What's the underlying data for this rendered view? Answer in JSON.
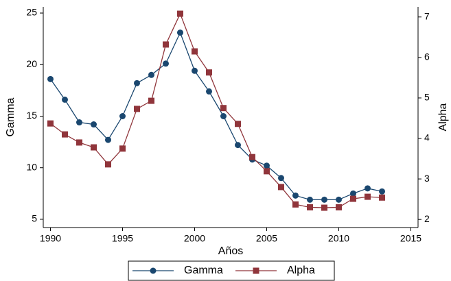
{
  "chart_data": {
    "type": "line",
    "x": [
      1990,
      1991,
      1992,
      1993,
      1994,
      1995,
      1996,
      1997,
      1998,
      1999,
      2000,
      2001,
      2002,
      2003,
      2004,
      2005,
      2006,
      2007,
      2008,
      2009,
      2010,
      2011,
      2012,
      2013
    ],
    "series": [
      {
        "name": "Gamma",
        "color": "#1a476f",
        "marker": "circle",
        "values": [
          18.6,
          16.6,
          14.4,
          14.2,
          12.7,
          15.0,
          18.2,
          19.0,
          20.1,
          23.1,
          19.4,
          17.4,
          15.0,
          12.2,
          10.8,
          10.2,
          9.0,
          7.3,
          6.9,
          6.9,
          6.9,
          7.5,
          8.0,
          7.7
        ]
      },
      {
        "name": "Alpha",
        "color": "#90353b",
        "marker": "square",
        "axis": "y2",
        "values": [
          4.37,
          4.1,
          3.9,
          3.78,
          3.36,
          3.75,
          4.73,
          4.93,
          6.32,
          7.08,
          6.15,
          5.63,
          4.75,
          4.36,
          3.54,
          3.19,
          2.8,
          2.37,
          2.3,
          2.29,
          2.3,
          2.51,
          2.56,
          2.54
        ]
      }
    ],
    "xlabel": "Años",
    "ylabel": "Gamma",
    "y2label": "Alpha",
    "xlim": [
      1989.5,
      2015.5
    ],
    "xticks": [
      1990,
      1995,
      2000,
      2005,
      2010,
      2015
    ],
    "ylim": [
      4.2,
      25.6
    ],
    "yticks": [
      5,
      10,
      15,
      20,
      25
    ],
    "y2lim": [
      1.8,
      7.25
    ],
    "y2ticks": [
      2,
      3,
      4,
      5,
      6,
      7
    ],
    "grid": false,
    "legend": "bottom"
  }
}
